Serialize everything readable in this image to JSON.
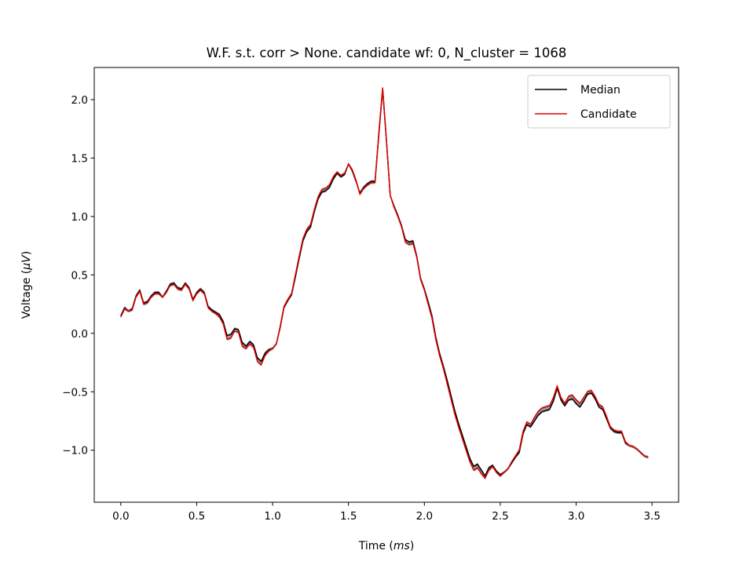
{
  "chart_data": {
    "type": "line",
    "title": "W.F. s.t. corr > None. candidate wf: 0, N_cluster = 1068",
    "xlabel_text": "Time (",
    "xlabel_unit": "ms",
    "xlabel_close": ")",
    "ylabel_text": "Voltage (",
    "ylabel_unit": "μV",
    "ylabel_close": ")",
    "xlim": [
      -0.175,
      3.675
    ],
    "ylim": [
      -1.445,
      2.275
    ],
    "xticks": [
      0.0,
      0.5,
      1.0,
      1.5,
      2.0,
      2.5,
      3.0,
      3.5
    ],
    "xtick_labels": [
      "0.0",
      "0.5",
      "1.0",
      "1.5",
      "2.0",
      "2.5",
      "3.0",
      "3.5"
    ],
    "yticks": [
      -1.0,
      -0.5,
      0.0,
      0.5,
      1.0,
      1.5,
      2.0
    ],
    "ytick_labels": [
      "−1.0",
      "−0.5",
      "0.0",
      "0.5",
      "1.0",
      "1.5",
      "2.0"
    ],
    "legend_position": "top-right",
    "band_color": "#808080",
    "series": [
      {
        "name": "Median",
        "color": "#000000",
        "x": [
          0.0,
          0.025,
          0.05,
          0.075,
          0.1,
          0.125,
          0.15,
          0.175,
          0.2,
          0.225,
          0.25,
          0.275,
          0.3,
          0.325,
          0.35,
          0.375,
          0.4,
          0.425,
          0.45,
          0.475,
          0.5,
          0.525,
          0.55,
          0.575,
          0.6,
          0.625,
          0.65,
          0.675,
          0.7,
          0.725,
          0.75,
          0.775,
          0.8,
          0.825,
          0.85,
          0.875,
          0.9,
          0.925,
          0.95,
          0.975,
          1.0,
          1.025,
          1.05,
          1.075,
          1.1,
          1.125,
          1.15,
          1.175,
          1.2,
          1.225,
          1.25,
          1.275,
          1.3,
          1.325,
          1.35,
          1.375,
          1.4,
          1.425,
          1.45,
          1.475,
          1.5,
          1.525,
          1.55,
          1.575,
          1.6,
          1.625,
          1.65,
          1.675,
          1.7,
          1.725,
          1.75,
          1.775,
          1.8,
          1.825,
          1.85,
          1.875,
          1.9,
          1.925,
          1.95,
          1.975,
          2.0,
          2.025,
          2.05,
          2.075,
          2.1,
          2.125,
          2.15,
          2.175,
          2.2,
          2.225,
          2.25,
          2.275,
          2.3,
          2.325,
          2.35,
          2.375,
          2.4,
          2.425,
          2.45,
          2.475,
          2.5,
          2.525,
          2.55,
          2.575,
          2.6,
          2.625,
          2.65,
          2.675,
          2.7,
          2.725,
          2.75,
          2.775,
          2.8,
          2.825,
          2.85,
          2.875,
          2.9,
          2.925,
          2.95,
          2.975,
          3.0,
          3.025,
          3.05,
          3.075,
          3.1,
          3.125,
          3.15,
          3.175,
          3.2,
          3.225,
          3.25,
          3.275,
          3.3,
          3.325,
          3.35,
          3.375,
          3.4,
          3.425,
          3.45,
          3.475
        ],
        "y": [
          0.15,
          0.22,
          0.19,
          0.21,
          0.32,
          0.37,
          0.26,
          0.27,
          0.32,
          0.35,
          0.35,
          0.31,
          0.36,
          0.42,
          0.43,
          0.39,
          0.38,
          0.43,
          0.39,
          0.29,
          0.35,
          0.38,
          0.35,
          0.23,
          0.2,
          0.18,
          0.16,
          0.1,
          -0.02,
          -0.01,
          0.04,
          0.03,
          -0.08,
          -0.11,
          -0.07,
          -0.1,
          -0.21,
          -0.24,
          -0.17,
          -0.14,
          -0.13,
          -0.09,
          0.05,
          0.22,
          0.28,
          0.33,
          0.48,
          0.64,
          0.79,
          0.87,
          0.91,
          1.04,
          1.15,
          1.21,
          1.22,
          1.25,
          1.32,
          1.37,
          1.34,
          1.36,
          1.45,
          1.39,
          1.3,
          1.2,
          1.25,
          1.28,
          1.3,
          1.3,
          1.7,
          2.09,
          1.65,
          1.18,
          1.09,
          1.01,
          0.92,
          0.8,
          0.78,
          0.79,
          0.66,
          0.47,
          0.38,
          0.27,
          0.15,
          -0.03,
          -0.17,
          -0.28,
          -0.4,
          -0.53,
          -0.66,
          -0.77,
          -0.87,
          -0.97,
          -1.07,
          -1.14,
          -1.12,
          -1.17,
          -1.22,
          -1.15,
          -1.13,
          -1.18,
          -1.21,
          -1.19,
          -1.16,
          -1.11,
          -1.06,
          -1.02,
          -0.86,
          -0.78,
          -0.8,
          -0.75,
          -0.7,
          -0.67,
          -0.66,
          -0.65,
          -0.58,
          -0.47,
          -0.57,
          -0.62,
          -0.57,
          -0.56,
          -0.6,
          -0.63,
          -0.58,
          -0.52,
          -0.51,
          -0.56,
          -0.63,
          -0.65,
          -0.73,
          -0.81,
          -0.84,
          -0.85,
          -0.85,
          -0.94,
          -0.96,
          -0.97,
          -0.99,
          -1.02,
          -1.05,
          -1.06
        ]
      },
      {
        "name": "Candidate",
        "color": "#e00000",
        "x": [
          0.0,
          0.025,
          0.05,
          0.075,
          0.1,
          0.125,
          0.15,
          0.175,
          0.2,
          0.225,
          0.25,
          0.275,
          0.3,
          0.325,
          0.35,
          0.375,
          0.4,
          0.425,
          0.45,
          0.475,
          0.5,
          0.525,
          0.55,
          0.575,
          0.6,
          0.625,
          0.65,
          0.675,
          0.7,
          0.725,
          0.75,
          0.775,
          0.8,
          0.825,
          0.85,
          0.875,
          0.9,
          0.925,
          0.95,
          0.975,
          1.0,
          1.025,
          1.05,
          1.075,
          1.1,
          1.125,
          1.15,
          1.175,
          1.2,
          1.225,
          1.25,
          1.275,
          1.3,
          1.325,
          1.35,
          1.375,
          1.4,
          1.425,
          1.45,
          1.475,
          1.5,
          1.525,
          1.55,
          1.575,
          1.6,
          1.625,
          1.65,
          1.675,
          1.7,
          1.725,
          1.75,
          1.775,
          1.8,
          1.825,
          1.85,
          1.875,
          1.9,
          1.925,
          1.95,
          1.975,
          2.0,
          2.025,
          2.05,
          2.075,
          2.1,
          2.125,
          2.15,
          2.175,
          2.2,
          2.225,
          2.25,
          2.275,
          2.3,
          2.325,
          2.35,
          2.375,
          2.4,
          2.425,
          2.45,
          2.475,
          2.5,
          2.525,
          2.55,
          2.575,
          2.6,
          2.625,
          2.65,
          2.675,
          2.7,
          2.725,
          2.75,
          2.775,
          2.8,
          2.825,
          2.85,
          2.875,
          2.9,
          2.925,
          2.95,
          2.975,
          3.0,
          3.025,
          3.05,
          3.075,
          3.1,
          3.125,
          3.15,
          3.175,
          3.2,
          3.225,
          3.25,
          3.275,
          3.3,
          3.325,
          3.35,
          3.375,
          3.4,
          3.425,
          3.45,
          3.475
        ],
        "y": [
          0.14,
          0.21,
          0.19,
          0.2,
          0.31,
          0.36,
          0.25,
          0.26,
          0.31,
          0.34,
          0.34,
          0.31,
          0.35,
          0.41,
          0.42,
          0.38,
          0.37,
          0.42,
          0.38,
          0.28,
          0.34,
          0.37,
          0.34,
          0.22,
          0.19,
          0.17,
          0.14,
          0.08,
          -0.05,
          -0.04,
          0.02,
          0.01,
          -0.11,
          -0.13,
          -0.09,
          -0.12,
          -0.24,
          -0.27,
          -0.19,
          -0.15,
          -0.13,
          -0.09,
          0.06,
          0.23,
          0.29,
          0.34,
          0.5,
          0.66,
          0.81,
          0.89,
          0.93,
          1.06,
          1.17,
          1.23,
          1.24,
          1.27,
          1.34,
          1.38,
          1.35,
          1.37,
          1.45,
          1.4,
          1.31,
          1.19,
          1.24,
          1.27,
          1.29,
          1.29,
          1.72,
          2.1,
          1.66,
          1.18,
          1.08,
          1.0,
          0.91,
          0.78,
          0.76,
          0.77,
          0.65,
          0.46,
          0.37,
          0.25,
          0.13,
          -0.05,
          -0.19,
          -0.3,
          -0.43,
          -0.56,
          -0.69,
          -0.8,
          -0.9,
          -1.0,
          -1.1,
          -1.17,
          -1.15,
          -1.2,
          -1.24,
          -1.17,
          -1.14,
          -1.19,
          -1.22,
          -1.19,
          -1.16,
          -1.1,
          -1.05,
          -1.0,
          -0.84,
          -0.76,
          -0.78,
          -0.72,
          -0.67,
          -0.64,
          -0.63,
          -0.62,
          -0.55,
          -0.45,
          -0.55,
          -0.6,
          -0.54,
          -0.53,
          -0.57,
          -0.6,
          -0.55,
          -0.5,
          -0.49,
          -0.54,
          -0.61,
          -0.63,
          -0.71,
          -0.8,
          -0.83,
          -0.84,
          -0.84,
          -0.93,
          -0.96,
          -0.97,
          -0.99,
          -1.02,
          -1.05,
          -1.06
        ]
      }
    ],
    "grid": false
  }
}
